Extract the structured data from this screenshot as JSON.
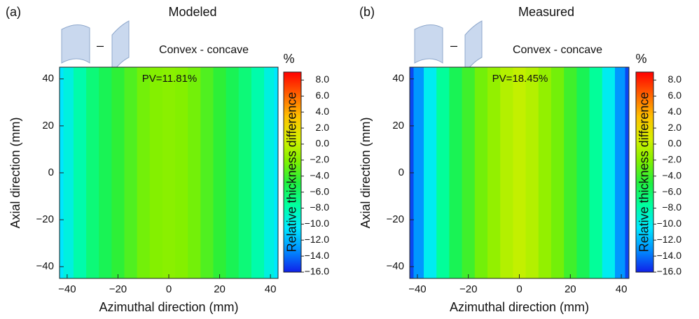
{
  "chart_data": [
    {
      "type": "contour",
      "panel": "(a)",
      "title": "Modeled",
      "subtitle": "Convex - concave",
      "operator": "–",
      "annotation": "PV=11.81%",
      "xlabel": "Azimuthal direction (mm)",
      "ylabel": "Axial direction (mm)",
      "colorbar_label": "Relative thickness difference",
      "colorbar_unit": "%",
      "x": [
        -43,
        -40,
        -35,
        -30,
        -25,
        -20,
        -15,
        -10,
        -5,
        0,
        5,
        10,
        15,
        20,
        25,
        30,
        35,
        40,
        43
      ],
      "values": [
        -10.5,
        -9.5,
        -8,
        -6.5,
        -5.5,
        -4.5,
        -3.5,
        -2.5,
        -2,
        -1.8,
        -2,
        -2.5,
        -3.5,
        -4.5,
        -5.5,
        -6.5,
        -8,
        -9.5,
        -10.5
      ],
      "xlim": [
        -43,
        43
      ],
      "ylim": [
        -45,
        45
      ],
      "zlim": [
        -16,
        9
      ],
      "xticks": [
        {
          "value": -40,
          "label": "−40"
        },
        {
          "value": -20,
          "label": "−20"
        },
        0,
        20,
        40
      ],
      "yticks": [
        {
          "value": -40,
          "label": "−40"
        },
        {
          "value": -20,
          "label": "−20"
        },
        0,
        20,
        40
      ],
      "zticks": [
        {
          "value": 8,
          "label": "8.0"
        },
        {
          "value": 6,
          "label": "6.0"
        },
        {
          "value": 4,
          "label": "4.0"
        },
        {
          "value": 2,
          "label": "2.0"
        },
        {
          "value": 0,
          "label": "0.0"
        },
        {
          "value": -2,
          "label": "−2.0"
        },
        {
          "value": -4,
          "label": "−4.0"
        },
        {
          "value": -6,
          "label": "−6.0"
        },
        {
          "value": -8,
          "label": "−8.0"
        },
        {
          "value": -10,
          "label": "−10.0"
        },
        {
          "value": -12,
          "label": "−12.0"
        },
        {
          "value": -14,
          "label": "−14.0"
        },
        {
          "value": -16,
          "label": "−16.0"
        }
      ],
      "colormap": [
        "#1020e8",
        "#0090ff",
        "#00e8ff",
        "#00ffa0",
        "#20f040",
        "#80f000",
        "#d8f000",
        "#ffc000",
        "#ff6000",
        "#ff0000"
      ]
    },
    {
      "type": "contour",
      "panel": "(b)",
      "title": "Measured",
      "subtitle": "Convex - concave",
      "operator": "–",
      "annotation": "PV=18.45%",
      "xlabel": "Azimuthal direction (mm)",
      "ylabel": "Axial direction (mm)",
      "colorbar_label": "Relative thickness difference",
      "colorbar_unit": "%",
      "x": [
        -43,
        -40,
        -35,
        -30,
        -25,
        -20,
        -15,
        -10,
        -5,
        0,
        5,
        10,
        15,
        20,
        25,
        30,
        35,
        40,
        43
      ],
      "values": [
        -15,
        -13,
        -10,
        -7.5,
        -5.5,
        -4,
        -2.5,
        -1.5,
        -0.5,
        0,
        -0.5,
        -1.5,
        -2.5,
        -4,
        -5.5,
        -7.5,
        -10,
        -13,
        -15
      ],
      "xlim": [
        -43,
        43
      ],
      "ylim": [
        -45,
        45
      ],
      "zlim": [
        -16,
        9
      ],
      "xticks": [
        {
          "value": -40,
          "label": "−40"
        },
        {
          "value": -20,
          "label": "−20"
        },
        0,
        20,
        40
      ],
      "yticks": [
        {
          "value": -40,
          "label": "−40"
        },
        {
          "value": -20,
          "label": "−20"
        },
        0,
        20,
        40
      ],
      "zticks": [
        {
          "value": 8,
          "label": "8.0"
        },
        {
          "value": 6,
          "label": "6.0"
        },
        {
          "value": 4,
          "label": "4.0"
        },
        {
          "value": 2,
          "label": "2.0"
        },
        {
          "value": 0,
          "label": "0.0"
        },
        {
          "value": -2,
          "label": "−2.0"
        },
        {
          "value": -4,
          "label": "−4.0"
        },
        {
          "value": -6,
          "label": "−6.0"
        },
        {
          "value": -8,
          "label": "−8.0"
        },
        {
          "value": -10,
          "label": "−10.0"
        },
        {
          "value": -12,
          "label": "−12.0"
        },
        {
          "value": -14,
          "label": "−14.0"
        },
        {
          "value": -16,
          "label": "−16.0"
        }
      ],
      "colormap": [
        "#1020e8",
        "#0090ff",
        "#00e8ff",
        "#00ffa0",
        "#20f040",
        "#80f000",
        "#d8f000",
        "#ffc000",
        "#ff6000",
        "#ff0000"
      ]
    }
  ]
}
